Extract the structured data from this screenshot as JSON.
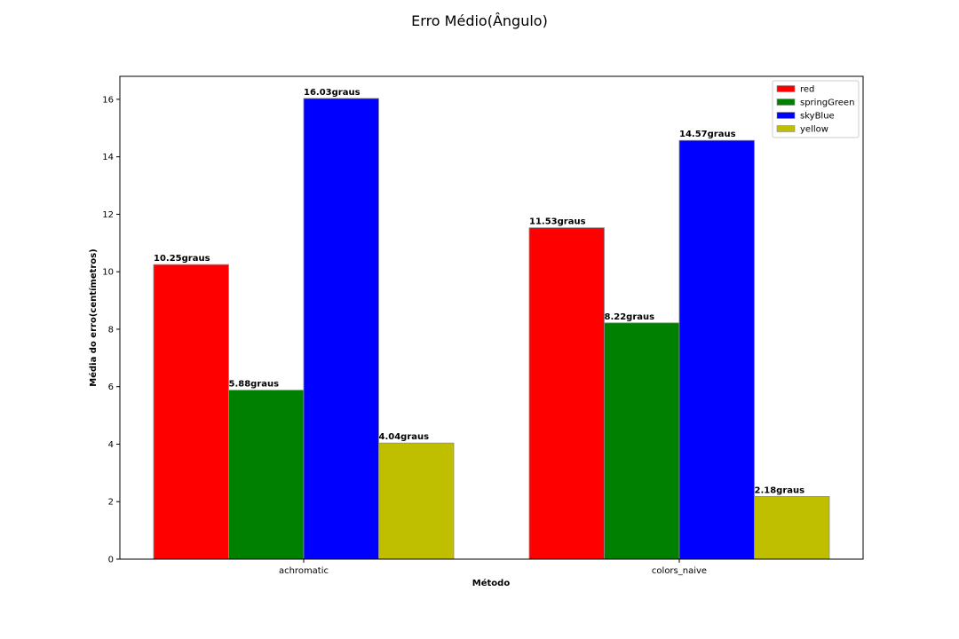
{
  "chart_data": {
    "type": "bar",
    "title": "Erro Médio(Ângulo)",
    "xlabel": "Método",
    "ylabel": "Média do erro(centímetros)",
    "categories": [
      "achromatic",
      "colors_naive"
    ],
    "series": [
      {
        "name": "red",
        "color": "#ff0000",
        "values": [
          10.25,
          11.53
        ],
        "labels": [
          "10.25graus",
          "11.53graus"
        ]
      },
      {
        "name": "springGreen",
        "color": "#008000",
        "values": [
          5.88,
          8.22
        ],
        "labels": [
          "5.88graus",
          "8.22graus"
        ]
      },
      {
        "name": "skyBlue",
        "color": "#0000ff",
        "values": [
          16.03,
          14.57
        ],
        "labels": [
          "16.03graus",
          "14.57graus"
        ]
      },
      {
        "name": "yellow",
        "color": "#bfbf00",
        "values": [
          4.04,
          2.18
        ],
        "labels": [
          "4.04graus",
          "2.18graus"
        ]
      }
    ],
    "ylim": [
      0,
      16.8
    ],
    "yticks": [
      0,
      2,
      4,
      6,
      8,
      10,
      12,
      14,
      16
    ],
    "grid": false,
    "legend": "top-right"
  }
}
